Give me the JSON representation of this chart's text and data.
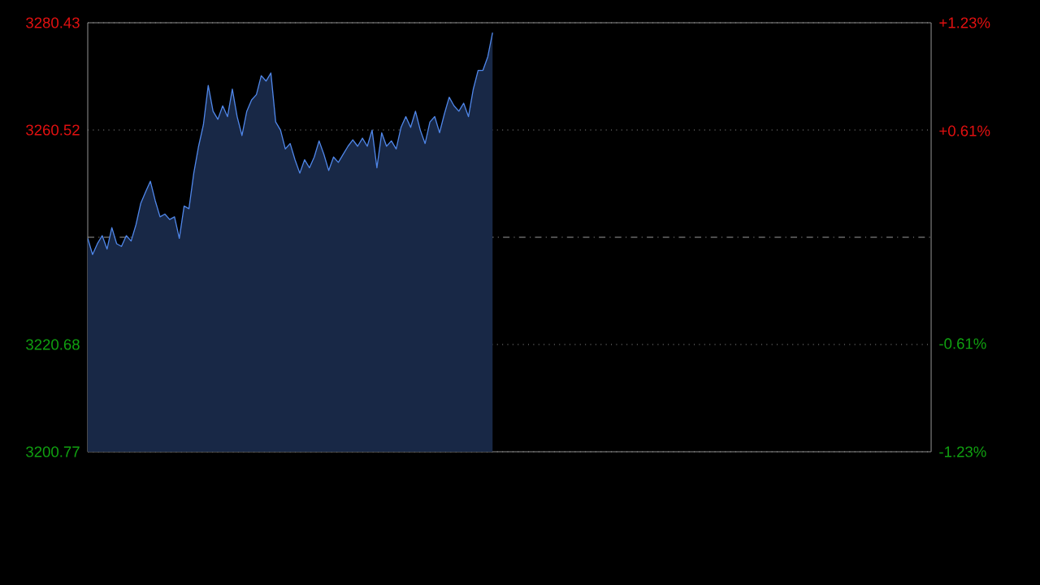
{
  "chart_data": {
    "type": "area",
    "categories": [
      null,
      null,
      null,
      null,
      null,
      null,
      null,
      null,
      null,
      null,
      null,
      null,
      null,
      null,
      null,
      null,
      null,
      null,
      null,
      null,
      null,
      null,
      null,
      null,
      null,
      null,
      null,
      null,
      null,
      null,
      null,
      null,
      null,
      null,
      null,
      null,
      null,
      null,
      null,
      null,
      null,
      null,
      null,
      null,
      null,
      null,
      null,
      null,
      null,
      null,
      null,
      null,
      null,
      null,
      null,
      null,
      null,
      null,
      null,
      null,
      null,
      null,
      null,
      null,
      null,
      null,
      null,
      null,
      null,
      null,
      null,
      null,
      null,
      null,
      null,
      null,
      null,
      null,
      null,
      null,
      null,
      null,
      null,
      null,
      null,
      null,
      null,
      null,
      null,
      null,
      null,
      null,
      null,
      null,
      null,
      null,
      null,
      null,
      null,
      null,
      null,
      null,
      null,
      null,
      null,
      null,
      null,
      null,
      null,
      null,
      null,
      null,
      null,
      null,
      null,
      null,
      null,
      null,
      null,
      null,
      null,
      null,
      null,
      null,
      null,
      null,
      null,
      null,
      null,
      null,
      null,
      null,
      null,
      null,
      null,
      null,
      null,
      null,
      null,
      null,
      null,
      null,
      null,
      null,
      null,
      null,
      null,
      null,
      null,
      null,
      null,
      null,
      null,
      null,
      null,
      null,
      null,
      null,
      null,
      null,
      null,
      null,
      null,
      null,
      null,
      null,
      null,
      null,
      null,
      null,
      null,
      null,
      null,
      null,
      null,
      null
    ],
    "series": [
      {
        "color": "#4f86e8",
        "values": [
          3240.4,
          3237.4,
          3239.4,
          3240.9,
          3238.4,
          3242.4,
          3239.4,
          3238.9,
          3240.9,
          3239.9,
          3242.9,
          3246.9,
          3249.0,
          3251.0,
          3247.4,
          3244.4,
          3244.9,
          3243.9,
          3244.4,
          3240.4,
          3246.4,
          3245.9,
          3252.5,
          3257.5,
          3261.5,
          3268.8,
          3264.0,
          3262.5,
          3265.0,
          3263.0,
          3268.1,
          3263.0,
          3259.5,
          3264.0,
          3266.1,
          3267.1,
          3270.6,
          3269.6,
          3271.1,
          3262.0,
          3260.5,
          3257.0,
          3258.0,
          3255.0,
          3252.5,
          3255.0,
          3253.5,
          3255.5,
          3258.5,
          3256.0,
          3253.0,
          3255.5,
          3254.5,
          3256.0,
          3257.5,
          3258.7,
          3257.5,
          3259.0,
          3257.5,
          3260.5,
          3253.5,
          3260.0,
          3257.5,
          3258.5,
          3257.0,
          3261.0,
          3263.0,
          3261.0,
          3264.0,
          3260.5,
          3258.0,
          3262.0,
          3263.0,
          3260.0,
          3263.5,
          3266.6,
          3265.0,
          3264.0,
          3265.5,
          3263.0,
          3268.1,
          3271.6,
          3271.6,
          3274.1,
          3278.6,
          null,
          null,
          null,
          null,
          null,
          null,
          null,
          null,
          null,
          null,
          null,
          null,
          null,
          null,
          null,
          null,
          null,
          null,
          null,
          null,
          null,
          null,
          null,
          null,
          null,
          null,
          null,
          null,
          null,
          null,
          null,
          null,
          null,
          null,
          null,
          null,
          null,
          null,
          null,
          null,
          null,
          null,
          null,
          null,
          null,
          null,
          null,
          null,
          null,
          null,
          null,
          null,
          null,
          null,
          null,
          null,
          null,
          null,
          null,
          null,
          null,
          null,
          null,
          null,
          null,
          null,
          null,
          null,
          null,
          null,
          null,
          null,
          null,
          null,
          null,
          null,
          null,
          null,
          null,
          null,
          null,
          null,
          null,
          null,
          null,
          null,
          null,
          null,
          null,
          null,
          null
        ]
      }
    ],
    "ylim": [
      3200.77,
      3280.43
    ],
    "yticks": [
      3200.77,
      3220.68,
      3260.52,
      3280.43
    ],
    "y2lim": [
      -1.23,
      1.23
    ],
    "y2ticks": [
      {
        "value": -1.23,
        "label": "-1.23%"
      },
      {
        "value": -0.61,
        "label": "-0.61%"
      },
      {
        "value": 0.61,
        "label": "+0.61%"
      },
      {
        "value": 1.23,
        "label": "+1.23%"
      }
    ],
    "ref_lines": [
      {
        "axis": "y",
        "value": 3240.6,
        "color": "#9a9a9a",
        "line_style": "dashdot"
      }
    ],
    "grid": "y",
    "tick_labels": "y"
  }
}
